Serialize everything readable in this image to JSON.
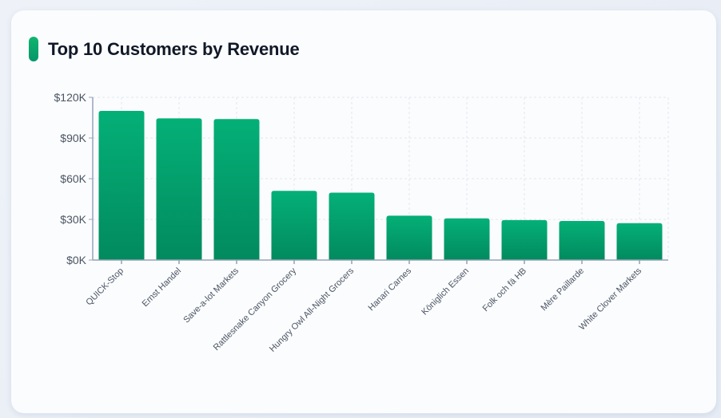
{
  "card": {
    "title": "Top 10 Customers by Revenue",
    "accent_color": "#059669"
  },
  "chart_data": {
    "type": "bar",
    "title": "Top 10 Customers by Revenue",
    "xlabel": "",
    "ylabel": "",
    "categories": [
      "QUICK-Stop",
      "Ernst Handel",
      "Save-a-lot Markets",
      "Rattlesnake Canyon Grocery",
      "Hungry Owl All-Night Grocers",
      "Hanari Carnes",
      "Königlich Essen",
      "Folk och fä HB",
      "Mère Paillarde",
      "White Clover Markets"
    ],
    "values": [
      110000,
      104500,
      104000,
      51000,
      49700,
      32700,
      30700,
      29500,
      28800,
      27200
    ],
    "ylim": [
      0,
      120000
    ],
    "yticks": [
      0,
      30000,
      60000,
      90000,
      120000
    ],
    "ytick_labels": [
      "$0K",
      "$30K",
      "$60K",
      "$90K",
      "$120K"
    ],
    "grid": true,
    "legend": "none",
    "bar_color_top": "#04b077",
    "bar_color_bottom": "#028a5e"
  }
}
